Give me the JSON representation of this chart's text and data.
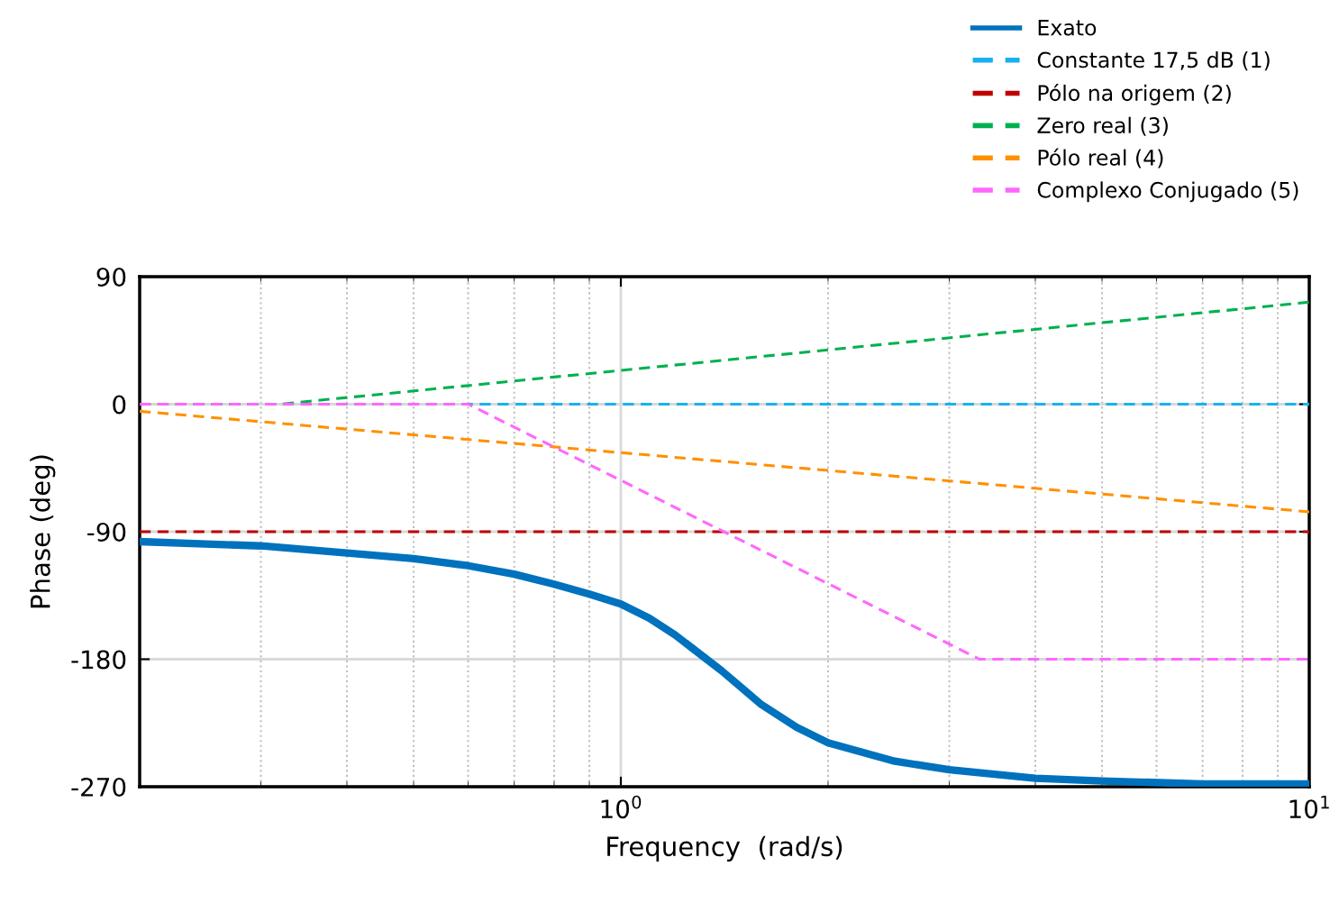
{
  "chart_data": {
    "type": "line",
    "xlabel": "Frequency  (rad/s)",
    "ylabel": "Phase (deg)",
    "log": "x",
    "grid": true,
    "legend": "top right",
    "xlim": [
      0.2,
      10
    ],
    "xticks": [
      {
        "value": 1,
        "label": "10$^{0}$"
      },
      {
        "value": 10,
        "label": "10$^{1}$"
      }
    ],
    "ylim": [
      -270,
      90
    ],
    "yticks": [
      -270,
      -180,
      -90,
      0,
      90
    ],
    "series": [
      {
        "name": "Exato",
        "color": "#0072bd",
        "line_style": "solid",
        "x": [
          0.2,
          0.3,
          0.4,
          0.5,
          0.6,
          0.7,
          0.8,
          0.9,
          1,
          1.1,
          1.2,
          1.4,
          1.6,
          1.8,
          2,
          2.5,
          3,
          4,
          5,
          7,
          10
        ],
        "values": [
          -97,
          -100,
          -105,
          -109,
          -114,
          -120,
          -127,
          -134,
          -141,
          -151,
          -163,
          -188,
          -212,
          -228,
          -239,
          -252,
          -258,
          -264,
          -266,
          -268,
          -268
        ]
      },
      {
        "name": "Constante 17,5 dB (1)",
        "color": "#1ab0f0",
        "line_style": "dashed",
        "x": [
          0.2,
          10
        ],
        "values": [
          0,
          0
        ]
      },
      {
        "name": "Pólo na origem (2)",
        "color": "#c00000",
        "line_style": "dashed",
        "x": [
          0.2,
          10
        ],
        "values": [
          -90,
          -90
        ]
      },
      {
        "name": "Zero real (3)",
        "color": "#00b050",
        "line_style": "dashed",
        "x": [
          0.2,
          0.32,
          10
        ],
        "values": [
          0,
          0,
          72
        ]
      },
      {
        "name": "Pólo real (4)",
        "color": "#ff9000",
        "line_style": "dashed",
        "x": [
          0.2,
          10
        ],
        "values": [
          -5,
          -76
        ]
      },
      {
        "name": "Complexo Conjugado (5)",
        "color": "#ff66ff",
        "line_style": "dashed",
        "x": [
          0.2,
          0.6,
          3.32,
          10
        ],
        "values": [
          0,
          0,
          -180,
          -180
        ]
      }
    ]
  }
}
